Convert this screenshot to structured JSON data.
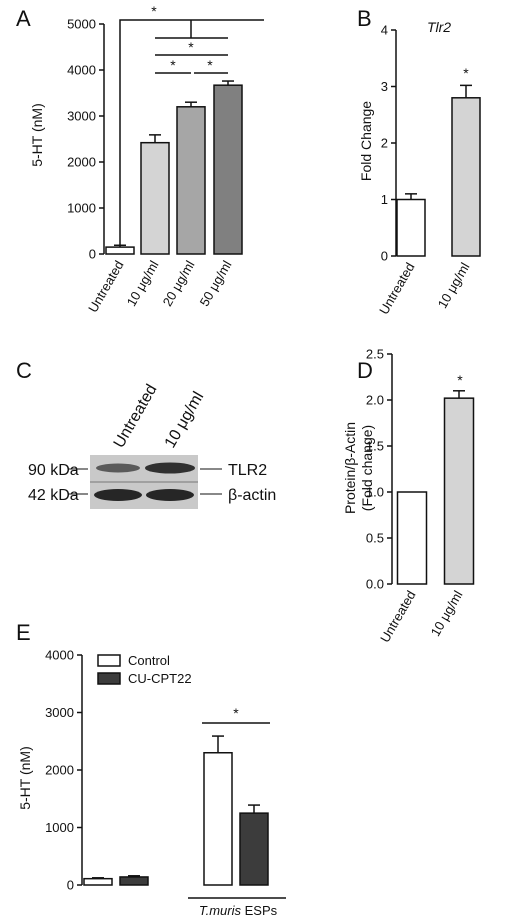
{
  "chart_data": [
    {
      "panel": "A",
      "type": "bar",
      "title": "",
      "ylabel": "5-HT (nM)",
      "ylim": [
        0,
        5000
      ],
      "yticks": [
        0,
        1000,
        2000,
        3000,
        4000,
        5000
      ],
      "categories": [
        "Untreated",
        "10 μg/ml",
        "20 μg/ml",
        "50 μg/ml"
      ],
      "values": [
        150,
        2420,
        3200,
        3670
      ],
      "errors": [
        40,
        170,
        100,
        90
      ],
      "bar_colors": [
        "#ffffff",
        "#d4d4d4",
        "#a6a6a6",
        "#808080"
      ],
      "significance": [
        "*",
        "*",
        "*",
        "*"
      ]
    },
    {
      "panel": "B",
      "type": "bar",
      "title": "Tlr2",
      "ylabel": "Fold Change",
      "ylim": [
        0,
        4
      ],
      "yticks": [
        0,
        1,
        2,
        3,
        4
      ],
      "categories": [
        "Untreated",
        "10 μg/ml"
      ],
      "values": [
        1.0,
        2.8
      ],
      "errors": [
        0.1,
        0.22
      ],
      "bar_colors": [
        "#ffffff",
        "#d4d4d4"
      ],
      "significance": [
        "*"
      ]
    },
    {
      "panel": "D",
      "type": "bar",
      "title": "",
      "ylabel": "Protein/β-Actin (Fold change)",
      "ylabel_lines": [
        "Protein/β-Actin",
        "(Fold change)"
      ],
      "ylim": [
        0,
        2.5
      ],
      "yticks": [
        "0.0",
        "0.5",
        "1.0",
        "1.5",
        "2.0",
        "2.5"
      ],
      "categories": [
        "Untreated",
        "10 μg/ml"
      ],
      "values": [
        1.0,
        2.02
      ],
      "errors": [
        0,
        0.08
      ],
      "bar_colors": [
        "#ffffff",
        "#d4d4d4"
      ],
      "significance": [
        "*"
      ]
    },
    {
      "panel": "E",
      "type": "bar",
      "title": "",
      "ylabel": "5-HT (nM)",
      "ylim": [
        0,
        4000
      ],
      "yticks": [
        0,
        1000,
        2000,
        3000,
        4000
      ],
      "categories": [
        "",
        "T.muris ESPs"
      ],
      "series": [
        {
          "name": "Control",
          "values": [
            110,
            2300
          ],
          "errors": [
            15,
            290
          ],
          "color": "#ffffff"
        },
        {
          "name": "CU-CPT22",
          "values": [
            140,
            1250
          ],
          "errors": [
            20,
            140
          ],
          "color": "#3c3c3c"
        }
      ],
      "legend_position": "top-left",
      "significance": [
        "*"
      ]
    }
  ],
  "panels": {
    "a": {
      "letter": "A"
    },
    "b": {
      "letter": "B"
    },
    "c": {
      "letter": "C"
    },
    "d": {
      "letter": "D"
    },
    "e": {
      "letter": "E"
    }
  },
  "western_blot": {
    "lanes": [
      "Untreated",
      "10 μg/ml"
    ],
    "rows": [
      {
        "size": "90 kDa",
        "protein": "TLR2"
      },
      {
        "size": "42 kDa",
        "protein": "β-actin"
      }
    ]
  },
  "panel_e_group": {
    "italic": "T.muris",
    "rest": " ESPs"
  }
}
